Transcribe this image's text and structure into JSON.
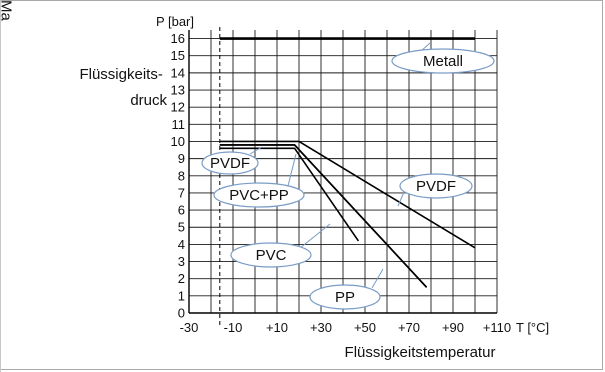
{
  "corner_text": "Ma",
  "chart_data": {
    "type": "line",
    "y_axis_title": "P [bar]",
    "x_axis_unit": "T [°C]",
    "ylabel": "Flüssigkeits-\ndruck",
    "xlabel": "Flüssigkeitstemperatur",
    "x_ticks": [
      -30,
      -10,
      10,
      30,
      50,
      70,
      90,
      110
    ],
    "x_tick_labels": [
      "-30",
      "-10",
      "+10",
      "+30",
      "+50",
      "+70",
      "+90",
      "+110"
    ],
    "y_ticks": [
      0,
      1,
      2,
      3,
      4,
      5,
      6,
      7,
      8,
      9,
      10,
      11,
      12,
      13,
      14,
      15,
      16
    ],
    "xlim": [
      -30,
      110
    ],
    "ylim": [
      0,
      16.5
    ],
    "grid": true,
    "reference_x": -16,
    "series": [
      {
        "name": "Metall",
        "x": [
          -16,
          100
        ],
        "y": [
          16,
          16
        ]
      },
      {
        "name": "PVDF",
        "x": [
          -16,
          20,
          100
        ],
        "y": [
          10,
          10,
          3.8
        ]
      },
      {
        "name": "PVC+PP",
        "x": [
          -16,
          18,
          78
        ],
        "y": [
          9.8,
          9.8,
          1.5
        ]
      },
      {
        "name": "PVC",
        "x": [
          -16,
          18,
          47
        ],
        "y": [
          9.6,
          9.6,
          4.2
        ]
      },
      {
        "name": "PP",
        "x": [
          -16,
          18,
          78
        ],
        "y": [
          9.8,
          9.8,
          1.5
        ]
      }
    ]
  }
}
